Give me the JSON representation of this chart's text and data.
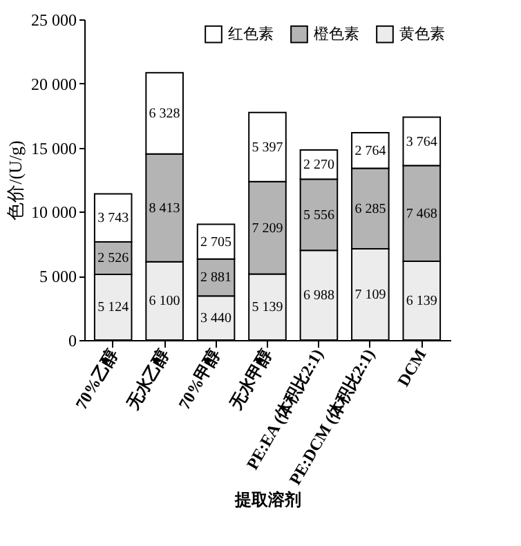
{
  "chart_data": {
    "type": "bar",
    "stacked": true,
    "xlabel": "提取溶剂",
    "ylabel": "色价/(U/g)",
    "categories": [
      "70%乙醇",
      "无水乙醇",
      "70%甲醇",
      "无水甲醇",
      "PE:EA (体积比2:1)",
      "PE:DCM (体积比2:1)",
      "DCM"
    ],
    "series": [
      {
        "name": "黄色素",
        "color": "#ececec",
        "values": [
          5124,
          6100,
          3440,
          5139,
          6988,
          7109,
          6139
        ],
        "value_labels": [
          "5 124",
          "6 100",
          "3 440",
          "5 139",
          "6 988",
          "7 109",
          "6 139"
        ]
      },
      {
        "name": "橙色素",
        "color": "#b4b4b4",
        "values": [
          2526,
          8413,
          2881,
          7209,
          5556,
          6285,
          7468
        ],
        "value_labels": [
          "2 526",
          "8 413",
          "2 881",
          "7 209",
          "5 556",
          "6 285",
          "7 468"
        ]
      },
      {
        "name": "红色素",
        "color": "#ffffff",
        "values": [
          3743,
          6328,
          2705,
          5397,
          2270,
          2764,
          3764
        ],
        "value_labels": [
          "3 743",
          "6 328",
          "2 705",
          "5 397",
          "2 270",
          "2 764",
          "3 764"
        ]
      }
    ],
    "ylim": [
      0,
      25000
    ],
    "yticks": [
      0,
      {
        "value": 5000,
        "label": "5 000"
      },
      {
        "value": 10000,
        "label": "10 000"
      },
      {
        "value": 15000,
        "label": "15 000"
      },
      {
        "value": 20000,
        "label": "20 000"
      },
      {
        "value": 25000,
        "label": "25 000"
      }
    ],
    "legend": "top right",
    "grid": false
  }
}
